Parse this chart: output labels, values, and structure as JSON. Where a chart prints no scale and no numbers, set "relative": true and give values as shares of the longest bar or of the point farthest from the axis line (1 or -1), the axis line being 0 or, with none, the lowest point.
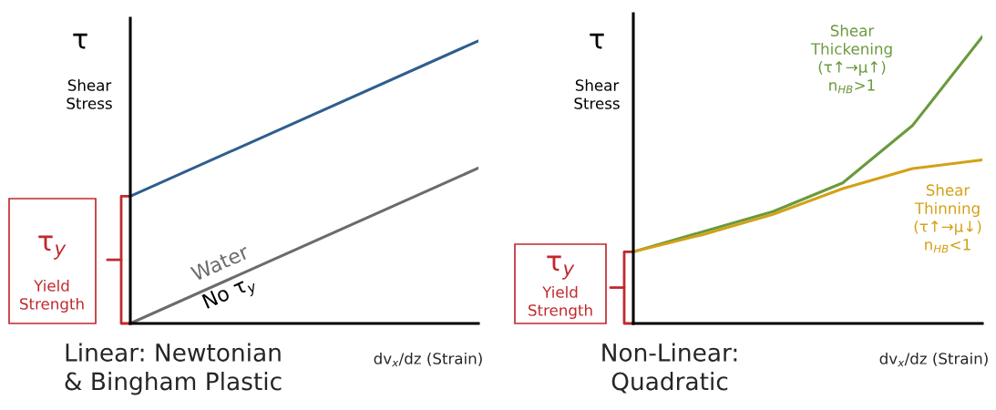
{
  "chart_data": [
    {
      "type": "line",
      "title": "Linear: Newtonian\n& Bingham Plastic",
      "xlabel": "dv$_{x}$/dz (Strain)",
      "relative": true,
      "categories": [
        null,
        null
      ],
      "grid": false,
      "legend": false,
      "series": [
        {
          "color": "#2e5e8e",
          "values": [
            0.45,
            1.0
          ]
        },
        {
          "color": "#6b6b6b",
          "values": [
            0,
            0.55
          ]
        }
      ],
      "annotations": [
        "τ",
        "Shear\nStress",
        "τ$_{y}$",
        "Yield\nStrength",
        "Water",
        "No τ$_{y}$"
      ]
    },
    {
      "type": "line",
      "title": "Non-Linear:\nQuadratic",
      "xlabel": "dv$_{x}$/dz (Strain)",
      "relative": true,
      "categories": [
        null,
        null,
        null,
        null,
        null,
        null
      ],
      "grid": false,
      "legend": false,
      "series": [
        {
          "color": "#6a9a3c",
          "values": [
            0.25,
            0.32,
            0.39,
            0.49,
            0.69,
            1.0
          ]
        },
        {
          "color": "#d4a017",
          "values": [
            0.25,
            0.31,
            0.38,
            0.47,
            0.54,
            0.57
          ]
        }
      ],
      "annotations": [
        "τ",
        "Shear\nStress",
        "τ$_{y}$",
        "Yield\nStrength",
        "Shear\nThickening\n(τ↑→μ↑)\nn$_{HB}$>1",
        "Shear\nThinning\n(τ↑→μ↓)\nn$_{HB}$<1"
      ]
    }
  ]
}
